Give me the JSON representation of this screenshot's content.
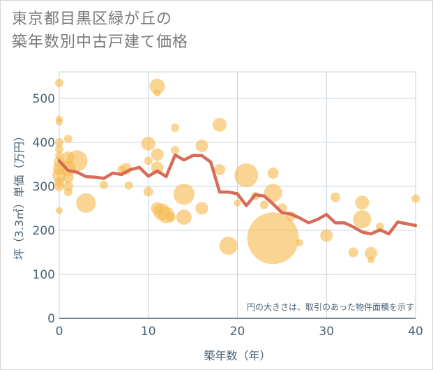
{
  "title_line1": "東京都目黒区緑が丘の",
  "title_line2": "築年数別中古戸建て価格",
  "chart_data": {
    "type": "scatter",
    "xlabel": "築年数（年）",
    "ylabel": "坪（3.3㎡）単価（万円）",
    "xlim": [
      0,
      40
    ],
    "ylim": [
      0,
      560
    ],
    "xticks": [
      0,
      10,
      20,
      30,
      40
    ],
    "yticks": [
      0,
      100,
      200,
      300,
      400,
      500
    ],
    "grid": true,
    "note": "円の大きさは、取引のあった物件面積を示す",
    "colors": {
      "bubble": "#f5b950",
      "line": "#d4614a",
      "grid": "#c8d2dc",
      "text": "#4a6275"
    },
    "bubbles": [
      {
        "x": 0,
        "y": 535,
        "s": 6
      },
      {
        "x": 0,
        "y": 453,
        "s": 5
      },
      {
        "x": 0,
        "y": 446,
        "s": 5
      },
      {
        "x": 0,
        "y": 400,
        "s": 6
      },
      {
        "x": 0,
        "y": 385,
        "s": 6
      },
      {
        "x": 0,
        "y": 370,
        "s": 6
      },
      {
        "x": 0,
        "y": 355,
        "s": 8
      },
      {
        "x": 0,
        "y": 340,
        "s": 9
      },
      {
        "x": 0,
        "y": 325,
        "s": 10
      },
      {
        "x": 0,
        "y": 310,
        "s": 7
      },
      {
        "x": 0,
        "y": 300,
        "s": 7
      },
      {
        "x": 0,
        "y": 245,
        "s": 5
      },
      {
        "x": 1,
        "y": 408,
        "s": 6
      },
      {
        "x": 1,
        "y": 365,
        "s": 9
      },
      {
        "x": 1,
        "y": 340,
        "s": 11
      },
      {
        "x": 1,
        "y": 320,
        "s": 8
      },
      {
        "x": 1,
        "y": 300,
        "s": 7
      },
      {
        "x": 1,
        "y": 287,
        "s": 6
      },
      {
        "x": 2,
        "y": 358,
        "s": 15
      },
      {
        "x": 3,
        "y": 262,
        "s": 14
      },
      {
        "x": 5,
        "y": 303,
        "s": 6
      },
      {
        "x": 7,
        "y": 338,
        "s": 6
      },
      {
        "x": 7.5,
        "y": 340,
        "s": 8
      },
      {
        "x": 7.8,
        "y": 302,
        "s": 6
      },
      {
        "x": 10,
        "y": 397,
        "s": 10
      },
      {
        "x": 10,
        "y": 358,
        "s": 6
      },
      {
        "x": 10,
        "y": 288,
        "s": 7
      },
      {
        "x": 11,
        "y": 527,
        "s": 11
      },
      {
        "x": 11,
        "y": 512,
        "s": 5
      },
      {
        "x": 11,
        "y": 372,
        "s": 9
      },
      {
        "x": 11,
        "y": 342,
        "s": 9
      },
      {
        "x": 11,
        "y": 250,
        "s": 9
      },
      {
        "x": 11.5,
        "y": 242,
        "s": 12
      },
      {
        "x": 12,
        "y": 235,
        "s": 12
      },
      {
        "x": 12.5,
        "y": 230,
        "s": 7
      },
      {
        "x": 13,
        "y": 433,
        "s": 6
      },
      {
        "x": 13,
        "y": 382,
        "s": 6
      },
      {
        "x": 14,
        "y": 282,
        "s": 15
      },
      {
        "x": 14,
        "y": 230,
        "s": 11
      },
      {
        "x": 16,
        "y": 392,
        "s": 9
      },
      {
        "x": 16,
        "y": 250,
        "s": 9
      },
      {
        "x": 18,
        "y": 440,
        "s": 10
      },
      {
        "x": 18,
        "y": 338,
        "s": 8
      },
      {
        "x": 19,
        "y": 165,
        "s": 13
      },
      {
        "x": 20,
        "y": 262,
        "s": 5
      },
      {
        "x": 21,
        "y": 325,
        "s": 17
      },
      {
        "x": 22,
        "y": 278,
        "s": 6
      },
      {
        "x": 23,
        "y": 258,
        "s": 6
      },
      {
        "x": 24,
        "y": 330,
        "s": 8
      },
      {
        "x": 24,
        "y": 285,
        "s": 13
      },
      {
        "x": 24,
        "y": 182,
        "s": 37
      },
      {
        "x": 25,
        "y": 250,
        "s": 7
      },
      {
        "x": 26,
        "y": 232,
        "s": 7
      },
      {
        "x": 27,
        "y": 172,
        "s": 5
      },
      {
        "x": 30,
        "y": 188,
        "s": 9
      },
      {
        "x": 31,
        "y": 275,
        "s": 7
      },
      {
        "x": 33,
        "y": 150,
        "s": 7
      },
      {
        "x": 34,
        "y": 263,
        "s": 10
      },
      {
        "x": 34,
        "y": 225,
        "s": 13
      },
      {
        "x": 35,
        "y": 148,
        "s": 9
      },
      {
        "x": 35,
        "y": 133,
        "s": 5
      },
      {
        "x": 36,
        "y": 208,
        "s": 6
      },
      {
        "x": 40,
        "y": 272,
        "s": 6
      }
    ],
    "series": [
      {
        "x": [
          0,
          1,
          2,
          3,
          4,
          5,
          6,
          7,
          8,
          9,
          10,
          11,
          12,
          13,
          14,
          15,
          16,
          17,
          18,
          19,
          20,
          21,
          22,
          23,
          24,
          25,
          26,
          27,
          28,
          29,
          30,
          31,
          32,
          33,
          34,
          35,
          36,
          37,
          38,
          39,
          40
        ],
        "values": [
          358,
          336,
          332,
          322,
          321,
          318,
          330,
          327,
          338,
          343,
          323,
          335,
          322,
          371,
          360,
          370,
          370,
          355,
          287,
          287,
          283,
          256,
          281,
          278,
          260,
          240,
          237,
          228,
          217,
          225,
          236,
          217,
          217,
          208,
          196,
          192,
          201,
          192,
          219,
          215,
          211
        ]
      }
    ]
  }
}
